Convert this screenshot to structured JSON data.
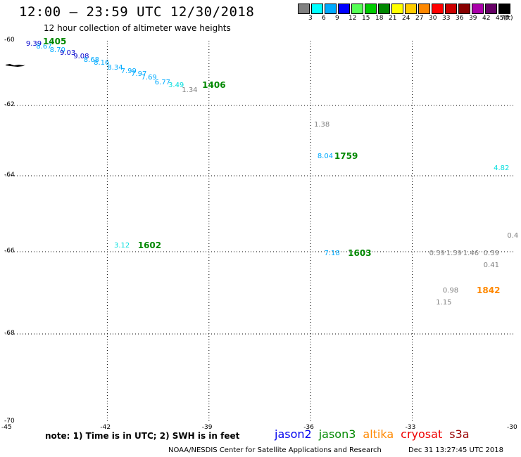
{
  "header": {
    "title": "12:00 – 23:59 UTC 12/30/2018",
    "subtitle": "12 hour collection of altimeter wave heights"
  },
  "legend": {
    "unit": "(ft)",
    "bins": [
      {
        "label": "3",
        "color": "#808080"
      },
      {
        "label": "6",
        "color": "#00ffff"
      },
      {
        "label": "9",
        "color": "#00aaff"
      },
      {
        "label": "12",
        "color": "#0000ff"
      },
      {
        "label": "15",
        "color": "#55ff55"
      },
      {
        "label": "18",
        "color": "#00cc00"
      },
      {
        "label": "21",
        "color": "#008800"
      },
      {
        "label": "24",
        "color": "#ffff00"
      },
      {
        "label": "27",
        "color": "#ffcc00"
      },
      {
        "label": "30",
        "color": "#ff8800"
      },
      {
        "label": "33",
        "color": "#ff0000"
      },
      {
        "label": "36",
        "color": "#cc0000"
      },
      {
        "label": "39",
        "color": "#880000"
      },
      {
        "label": "42",
        "color": "#aa00aa"
      },
      {
        "label": "45",
        "color": "#660066"
      },
      {
        "label": "70",
        "color": "#000000"
      }
    ]
  },
  "axes": {
    "lat_labels": [
      "-60",
      "-62",
      "-64",
      "-66",
      "-68",
      "-70"
    ],
    "lon_labels": [
      "-45",
      "-42",
      "-39",
      "-36",
      "-33",
      "-30"
    ]
  },
  "observations": [
    {
      "value": "9.39",
      "color": "#0000cc",
      "lon": -44.4,
      "lat": -60.1
    },
    {
      "value": "8.67",
      "color": "#00aaff",
      "lon": -44.1,
      "lat": -60.2
    },
    {
      "value": "8.70",
      "color": "#00aaff",
      "lon": -43.7,
      "lat": -60.3
    },
    {
      "value": "9.03",
      "color": "#0000cc",
      "lon": -43.4,
      "lat": -60.4
    },
    {
      "value": "9.08",
      "color": "#0000cc",
      "lon": -43.0,
      "lat": -60.5
    },
    {
      "value": "8.68",
      "color": "#00aaff",
      "lon": -42.7,
      "lat": -60.6
    },
    {
      "value": "8.16",
      "color": "#00aaff",
      "lon": -42.4,
      "lat": -60.7
    },
    {
      "value": "8.34",
      "color": "#00aaff",
      "lon": -42.0,
      "lat": -60.85
    },
    {
      "value": "7.99",
      "color": "#00aaff",
      "lon": -41.6,
      "lat": -60.95
    },
    {
      "value": "7.97",
      "color": "#00aaff",
      "lon": -41.3,
      "lat": -61.05
    },
    {
      "value": "7.69",
      "color": "#00aaff",
      "lon": -41.0,
      "lat": -61.15
    },
    {
      "value": "6.77",
      "color": "#00aaff",
      "lon": -40.6,
      "lat": -61.3
    },
    {
      "value": "3.49",
      "color": "#00dddd",
      "lon": -40.2,
      "lat": -61.4
    },
    {
      "value": "1.34",
      "color": "#808080",
      "lon": -39.8,
      "lat": -61.55
    },
    {
      "value": "1.38",
      "color": "#808080",
      "lon": -35.9,
      "lat": -62.55
    },
    {
      "value": "8.04",
      "color": "#00aaff",
      "lon": -35.8,
      "lat": -63.45
    },
    {
      "value": "4.82",
      "color": "#00dddd",
      "lon": -30.6,
      "lat": -63.8
    },
    {
      "value": "3.12",
      "color": "#00dddd",
      "lon": -41.8,
      "lat": -65.85
    },
    {
      "value": "7.18",
      "color": "#00aaff",
      "lon": -35.6,
      "lat": -66.05
    },
    {
      "value": "0.4",
      "color": "#808080",
      "lon": -30.2,
      "lat": -65.6
    },
    {
      "value": "0.59",
      "color": "#808080",
      "lon": -32.5,
      "lat": -66.05
    },
    {
      "value": "1.59",
      "color": "#808080",
      "lon": -32.0,
      "lat": -66.05
    },
    {
      "value": "1.46",
      "color": "#808080",
      "lon": -31.5,
      "lat": -66.05
    },
    {
      "value": "0.59",
      "color": "#808080",
      "lon": -30.9,
      "lat": -66.05
    },
    {
      "value": "0.41",
      "color": "#808080",
      "lon": -30.9,
      "lat": -66.35
    },
    {
      "value": "0.98",
      "color": "#808080",
      "lon": -32.1,
      "lat": -66.95
    },
    {
      "value": "1.15",
      "color": "#808080",
      "lon": -32.3,
      "lat": -67.25
    }
  ],
  "time_labels": [
    {
      "text": "1405",
      "color": "#008800",
      "lon": -43.9,
      "lat": -60.05
    },
    {
      "text": "1406",
      "color": "#008800",
      "lon": -39.2,
      "lat": -61.4
    },
    {
      "text": "1759",
      "color": "#008800",
      "lon": -35.3,
      "lat": -63.45
    },
    {
      "text": "1602",
      "color": "#008800",
      "lon": -41.1,
      "lat": -65.85
    },
    {
      "text": "1603",
      "color": "#008800",
      "lon": -34.9,
      "lat": -66.05
    },
    {
      "text": "1842",
      "color": "#ff8800",
      "lon": -31.1,
      "lat": -66.95
    }
  ],
  "footer": {
    "note": "note:  1) Time is in UTC;  2) SWH is in feet",
    "satellites": [
      {
        "name": "jason2",
        "color": "#0000ee"
      },
      {
        "name": "jason3",
        "color": "#008800"
      },
      {
        "name": "altika",
        "color": "#ff8800"
      },
      {
        "name": "cryosat",
        "color": "#ee0000"
      },
      {
        "name": "s3a",
        "color": "#990000"
      }
    ],
    "credit": "NOAA/NESDIS Center for Satellite Applications and Research",
    "timestamp": "Dec 31 13:27:45 UTC 2018"
  }
}
